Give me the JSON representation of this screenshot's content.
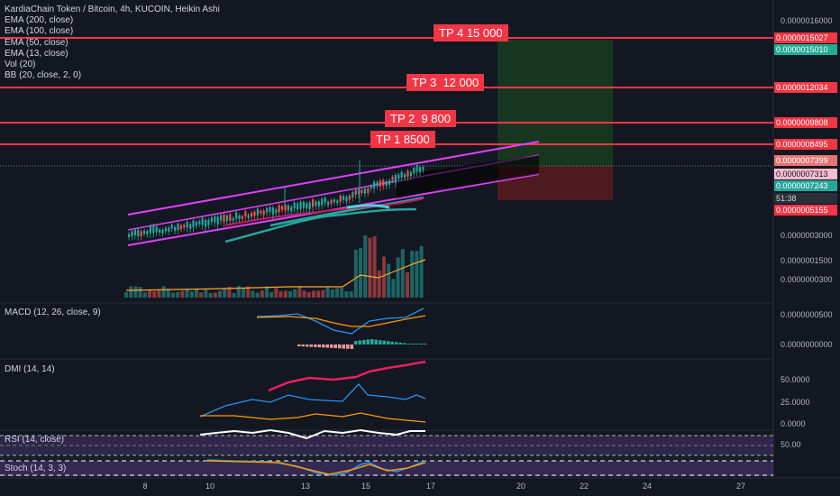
{
  "legend": {
    "title": "KardiaChain Token / Bitcoin, 4h, KUCOIN, Heikin Ashi",
    "studies": [
      "EMA (200, close)",
      "EMA (100, close)",
      "EMA (50, close)",
      "EMA (13, close)",
      "Vol (20)",
      "BB (20, close, 2, 0)"
    ]
  },
  "panes": {
    "macd": "MACD (12, 26, close, 9)",
    "dmi": "DMI (14, 14)",
    "rsi": "RSI (14, close)",
    "stoch": "Stoch (14, 3, 3)"
  },
  "tp_labels": [
    "TP 4 15 000",
    "TP 3  12 000",
    "TP 2  9 800",
    "TP 1 8500"
  ],
  "price_axis": [
    "0.0000016000",
    "0.0000015027",
    "0.0000015010",
    "0.0000012034",
    "0.0000009808",
    "0.0000008495",
    "0.0000007399",
    "0.0000007313",
    "0.0000007243",
    "51:38",
    "0.0000005155",
    "0.0000003000",
    "0.0000001500",
    "0.0000000300"
  ],
  "macd_axis": [
    "0.0000000500",
    "0.0000000000"
  ],
  "dmi_axis": [
    "50.0000",
    "25.0000",
    "0.0000"
  ],
  "rsi_axis": [
    "50.00"
  ],
  "date_axis": [
    "8",
    "10",
    "13",
    "15",
    "17",
    "20",
    "22",
    "24",
    "27"
  ],
  "colors": {
    "background": "#131722",
    "tp_line": "#f23645",
    "channel": "#e040fb",
    "take_profit_zone": "#1b5e20",
    "stop_zone": "#7f1d1d",
    "volume_up": "#26a69a",
    "volume_down": "#ef5350"
  }
}
